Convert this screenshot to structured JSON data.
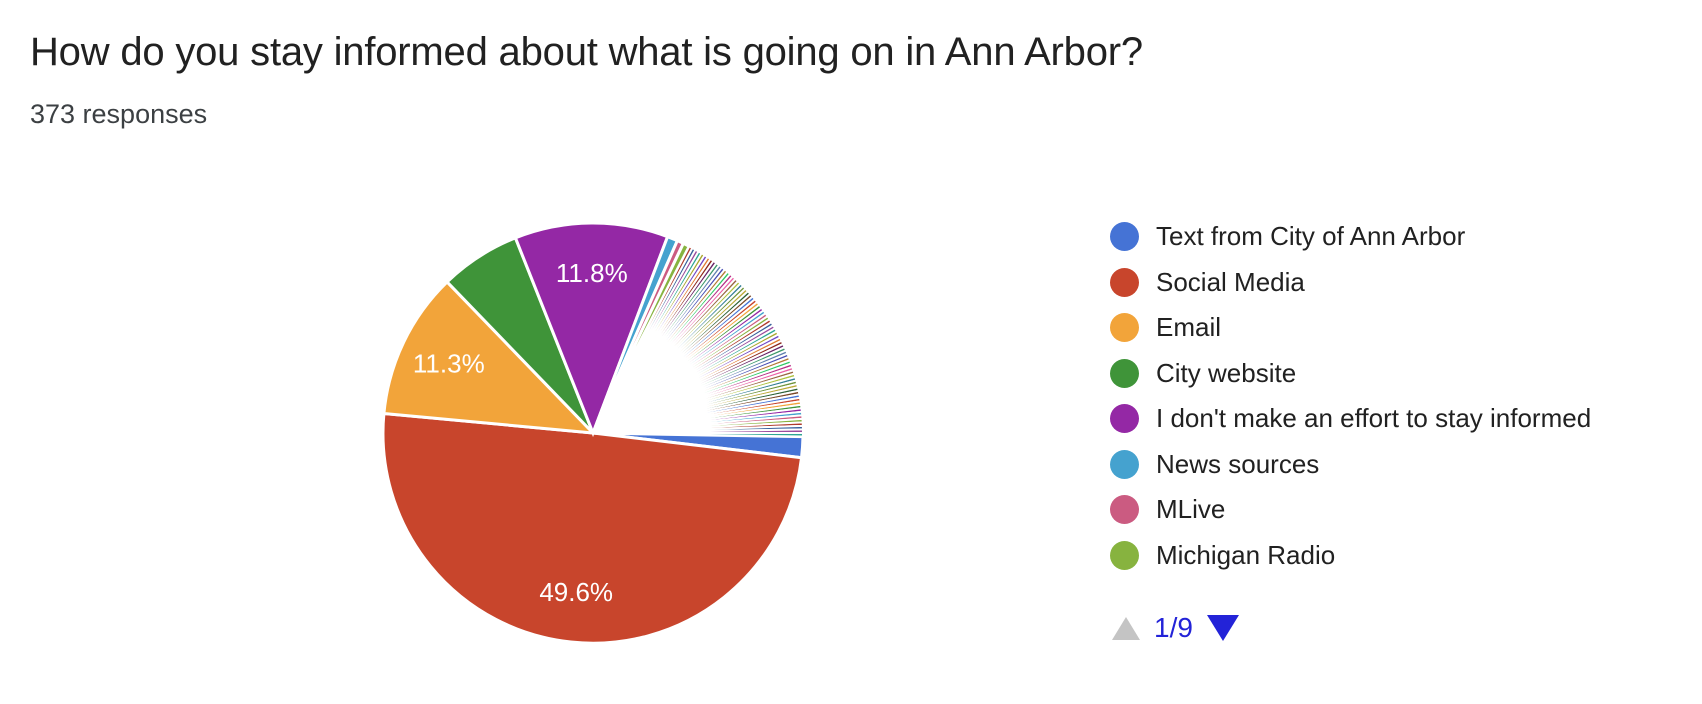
{
  "header": {
    "title": "How do you stay informed about what is going on in Ann Arbor?",
    "responses_count": "373 responses"
  },
  "colors": {
    "text_primary": "#212121",
    "text_secondary": "#3c4043",
    "pagination_active": "#2323d8",
    "pagination_disabled": "#c4c4c4",
    "percent_label": "#ffffff",
    "slice_border": "#ffffff"
  },
  "chart_data": {
    "type": "pie",
    "title": "How do you stay informed about what is going on in Ann Arbor?",
    "total_responses": 373,
    "start_angle_deg": 91,
    "rotation": "clockwise",
    "legend_position": "right",
    "slices": [
      {
        "label": "Text from City of Ann Arbor",
        "percent": 1.6,
        "color": "#4573d5",
        "display_label": null
      },
      {
        "label": "Social Media",
        "percent": 49.6,
        "color": "#c8452c",
        "display_label": "49.6%"
      },
      {
        "label": "Email",
        "percent": 11.3,
        "color": "#f2a43a",
        "display_label": "11.3%"
      },
      {
        "label": "City website",
        "percent": 6.2,
        "color": "#3f9439",
        "display_label": null
      },
      {
        "label": "I don't make an effort to stay informed",
        "percent": 11.8,
        "color": "#9428a5",
        "display_label": "11.8%"
      },
      {
        "label": "News sources",
        "percent": 0.8,
        "color": "#45a2cf",
        "display_label": null
      },
      {
        "label": "MLive",
        "percent": 0.5,
        "color": "#cb5b81",
        "display_label": null
      },
      {
        "label": "Michigan Radio",
        "percent": 0.5,
        "color": "#87b33f",
        "display_label": null
      }
    ],
    "other_slices": {
      "count": 66,
      "percent_each": 0.268,
      "palette": [
        "#af3b2c",
        "#38619b",
        "#9a4b9e",
        "#2ea795",
        "#aba82e",
        "#7046c8",
        "#e07c32",
        "#8f2a1f",
        "#6a2568",
        "#3e9a6b",
        "#5f7faf",
        "#4a4fb5",
        "#b57a35",
        "#2fca66",
        "#b73088",
        "#ec62a7",
        "#9a6743",
        "#aec23f",
        "#347f96",
        "#6f943a",
        "#bcaa3a",
        "#2e6238",
        "#7a4829",
        "#4573d5",
        "#c8452c",
        "#f2a43a",
        "#3f9439",
        "#9428a5",
        "#45a2cf",
        "#cb5b81",
        "#87b33f"
      ]
    }
  },
  "legend": {
    "pagination": {
      "label": "1/9"
    }
  }
}
